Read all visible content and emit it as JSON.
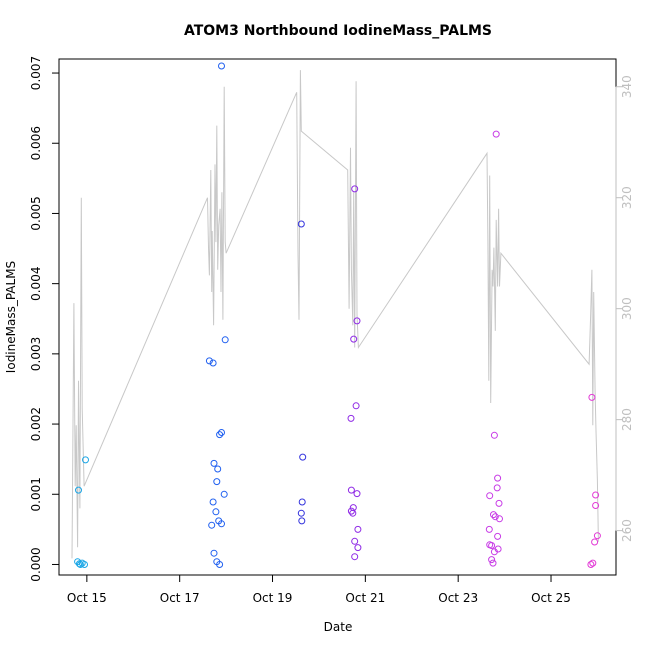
{
  "chart_data": {
    "type": "scatter",
    "title": "ATOM3 Northbound IodineMass_PALMS",
    "xlabel": "Date",
    "ylabel": "IodineMass_PALMS",
    "x_ticks": [
      {
        "day": 14.8,
        "label": "Oct 15"
      },
      {
        "day": 16.8,
        "label": "Oct 17"
      },
      {
        "day": 18.8,
        "label": "Oct 19"
      },
      {
        "day": 20.8,
        "label": "Oct 21"
      },
      {
        "day": 22.8,
        "label": "Oct 23"
      },
      {
        "day": 24.8,
        "label": "Oct 25"
      }
    ],
    "x_range": [
      14.2,
      26.2
    ],
    "y_left": {
      "range": [
        -0.00015,
        0.0072
      ],
      "ticks": [
        0.0,
        0.001,
        0.002,
        0.003,
        0.004,
        0.005,
        0.006,
        0.007
      ],
      "tick_labels": [
        "0.000",
        "0.001",
        "0.002",
        "0.003",
        "0.004",
        "0.005",
        "0.006",
        "0.007"
      ]
    },
    "y_right": {
      "range": [
        252,
        345
      ],
      "ticks": [
        260,
        280,
        300,
        320,
        340
      ],
      "tick_labels": [
        "260",
        "280",
        "300",
        "320",
        "340"
      ]
    },
    "colors": {
      "line": "#c8c8c8",
      "axis": "#000000",
      "right_axis": "#bfbfbf"
    },
    "points": [
      {
        "day": 14.6,
        "value": 4e-05,
        "color": "#1aa6e6"
      },
      {
        "day": 14.64,
        "value": 1e-05,
        "color": "#1aa6e6"
      },
      {
        "day": 14.66,
        "value": 0.0,
        "color": "#1aa6e6"
      },
      {
        "day": 14.7,
        "value": 2e-05,
        "color": "#1aa6e6"
      },
      {
        "day": 14.75,
        "value": 0.0,
        "color": "#1aa6e6"
      },
      {
        "day": 14.62,
        "value": 0.00106,
        "color": "#1aa6e6"
      },
      {
        "day": 14.77,
        "value": 0.00149,
        "color": "#1aa6e6"
      },
      {
        "day": 17.44,
        "value": 0.0029,
        "color": "#2060f0"
      },
      {
        "day": 17.52,
        "value": 0.00287,
        "color": "#2060f0"
      },
      {
        "day": 17.78,
        "value": 0.0032,
        "color": "#2060f0"
      },
      {
        "day": 17.7,
        "value": 0.0071,
        "color": "#2060f0"
      },
      {
        "day": 17.66,
        "value": 0.00185,
        "color": "#2060f0"
      },
      {
        "day": 17.7,
        "value": 0.00188,
        "color": "#2060f0"
      },
      {
        "day": 17.54,
        "value": 0.00144,
        "color": "#2060f0"
      },
      {
        "day": 17.62,
        "value": 0.00136,
        "color": "#2060f0"
      },
      {
        "day": 17.6,
        "value": 0.00118,
        "color": "#2060f0"
      },
      {
        "day": 17.76,
        "value": 0.001,
        "color": "#2060f0"
      },
      {
        "day": 17.52,
        "value": 0.00089,
        "color": "#2060f0"
      },
      {
        "day": 17.58,
        "value": 0.00075,
        "color": "#2060f0"
      },
      {
        "day": 17.64,
        "value": 0.00062,
        "color": "#2060f0"
      },
      {
        "day": 17.49,
        "value": 0.00056,
        "color": "#2060f0"
      },
      {
        "day": 17.7,
        "value": 0.00058,
        "color": "#2060f0"
      },
      {
        "day": 17.54,
        "value": 0.00016,
        "color": "#2060f0"
      },
      {
        "day": 17.6,
        "value": 4e-05,
        "color": "#2060f0"
      },
      {
        "day": 17.66,
        "value": 0.0,
        "color": "#2060f0"
      },
      {
        "day": 19.42,
        "value": 0.00485,
        "color": "#3333dd"
      },
      {
        "day": 19.45,
        "value": 0.00153,
        "color": "#3333dd"
      },
      {
        "day": 19.44,
        "value": 0.00089,
        "color": "#3333dd"
      },
      {
        "day": 19.42,
        "value": 0.00073,
        "color": "#3333dd"
      },
      {
        "day": 19.43,
        "value": 0.00062,
        "color": "#3333dd"
      },
      {
        "day": 20.57,
        "value": 0.00535,
        "color": "#8f2ae6"
      },
      {
        "day": 20.62,
        "value": 0.00347,
        "color": "#8f2ae6"
      },
      {
        "day": 20.55,
        "value": 0.00321,
        "color": "#8f2ae6"
      },
      {
        "day": 20.6,
        "value": 0.00226,
        "color": "#8f2ae6"
      },
      {
        "day": 20.49,
        "value": 0.00208,
        "color": "#8f2ae6"
      },
      {
        "day": 20.5,
        "value": 0.00106,
        "color": "#8f2ae6"
      },
      {
        "day": 20.62,
        "value": 0.00101,
        "color": "#8f2ae6"
      },
      {
        "day": 20.54,
        "value": 0.00081,
        "color": "#8f2ae6"
      },
      {
        "day": 20.5,
        "value": 0.00076,
        "color": "#8f2ae6"
      },
      {
        "day": 20.53,
        "value": 0.00073,
        "color": "#8f2ae6"
      },
      {
        "day": 20.64,
        "value": 0.0005,
        "color": "#8f2ae6"
      },
      {
        "day": 20.57,
        "value": 0.00033,
        "color": "#8f2ae6"
      },
      {
        "day": 20.64,
        "value": 0.00024,
        "color": "#8f2ae6"
      },
      {
        "day": 20.57,
        "value": 0.00011,
        "color": "#8f2ae6"
      },
      {
        "day": 23.62,
        "value": 0.00613,
        "color": "#c83ce6"
      },
      {
        "day": 23.58,
        "value": 0.00184,
        "color": "#c83ce6"
      },
      {
        "day": 23.65,
        "value": 0.00123,
        "color": "#c83ce6"
      },
      {
        "day": 23.64,
        "value": 0.00109,
        "color": "#c83ce6"
      },
      {
        "day": 23.48,
        "value": 0.00098,
        "color": "#c83ce6"
      },
      {
        "day": 23.68,
        "value": 0.00087,
        "color": "#c83ce6"
      },
      {
        "day": 23.56,
        "value": 0.00071,
        "color": "#c83ce6"
      },
      {
        "day": 23.6,
        "value": 0.00068,
        "color": "#c83ce6"
      },
      {
        "day": 23.69,
        "value": 0.00065,
        "color": "#c83ce6"
      },
      {
        "day": 23.47,
        "value": 0.0005,
        "color": "#c83ce6"
      },
      {
        "day": 23.65,
        "value": 0.0004,
        "color": "#c83ce6"
      },
      {
        "day": 23.48,
        "value": 0.00028,
        "color": "#c83ce6"
      },
      {
        "day": 23.52,
        "value": 0.00027,
        "color": "#c83ce6"
      },
      {
        "day": 23.58,
        "value": 0.00018,
        "color": "#c83ce6"
      },
      {
        "day": 23.66,
        "value": 0.00022,
        "color": "#c83ce6"
      },
      {
        "day": 23.52,
        "value": 7e-05,
        "color": "#c83ce6"
      },
      {
        "day": 23.55,
        "value": 2e-05,
        "color": "#c83ce6"
      },
      {
        "day": 25.68,
        "value": 0.00238,
        "color": "#e23ad6"
      },
      {
        "day": 25.76,
        "value": 0.00099,
        "color": "#e23ad6"
      },
      {
        "day": 25.76,
        "value": 0.00084,
        "color": "#e23ad6"
      },
      {
        "day": 25.8,
        "value": 0.00041,
        "color": "#e23ad6"
      },
      {
        "day": 25.74,
        "value": 0.00032,
        "color": "#e23ad6"
      },
      {
        "day": 25.66,
        "value": 0.0,
        "color": "#e23ad6"
      },
      {
        "day": 25.7,
        "value": 2e-05,
        "color": "#e23ad6"
      }
    ],
    "line_series": [
      [
        14.48,
        255
      ],
      [
        14.52,
        301
      ],
      [
        14.55,
        268
      ],
      [
        14.57,
        279
      ],
      [
        14.6,
        257
      ],
      [
        14.62,
        287
      ],
      [
        14.65,
        264
      ],
      [
        14.68,
        320
      ],
      [
        14.7,
        282
      ],
      [
        14.74,
        268
      ],
      [
        17.4,
        320
      ],
      [
        17.42,
        311
      ],
      [
        17.44,
        306
      ],
      [
        17.47,
        325
      ],
      [
        17.49,
        303
      ],
      [
        17.5,
        314
      ],
      [
        17.53,
        297
      ],
      [
        17.56,
        326
      ],
      [
        17.58,
        312
      ],
      [
        17.6,
        333
      ],
      [
        17.62,
        307
      ],
      [
        17.64,
        315
      ],
      [
        17.67,
        318
      ],
      [
        17.69,
        303
      ],
      [
        17.71,
        321
      ],
      [
        17.73,
        298
      ],
      [
        17.76,
        340
      ],
      [
        17.78,
        312
      ],
      [
        17.8,
        310
      ],
      [
        19.32,
        339
      ],
      [
        19.35,
        310
      ],
      [
        19.37,
        298
      ],
      [
        19.4,
        343
      ],
      [
        19.42,
        332
      ],
      [
        20.42,
        325
      ],
      [
        20.45,
        300
      ],
      [
        20.48,
        329
      ],
      [
        20.5,
        307
      ],
      [
        20.53,
        297
      ],
      [
        20.55,
        321
      ],
      [
        20.57,
        293
      ],
      [
        20.6,
        341
      ],
      [
        20.62,
        299
      ],
      [
        20.65,
        293
      ],
      [
        23.42,
        328
      ],
      [
        23.44,
        312
      ],
      [
        23.46,
        287
      ],
      [
        23.48,
        324
      ],
      [
        23.5,
        283
      ],
      [
        23.53,
        307
      ],
      [
        23.55,
        304
      ],
      [
        23.57,
        311
      ],
      [
        23.6,
        296
      ],
      [
        23.62,
        316
      ],
      [
        23.65,
        304
      ],
      [
        23.67,
        318
      ],
      [
        23.69,
        304
      ],
      [
        23.72,
        310
      ],
      [
        25.62,
        290
      ],
      [
        25.65,
        298
      ],
      [
        25.68,
        307
      ],
      [
        25.7,
        279
      ],
      [
        25.72,
        303
      ],
      [
        25.75,
        285
      ],
      [
        25.77,
        278
      ],
      [
        25.8,
        269
      ],
      [
        25.82,
        258
      ]
    ]
  }
}
